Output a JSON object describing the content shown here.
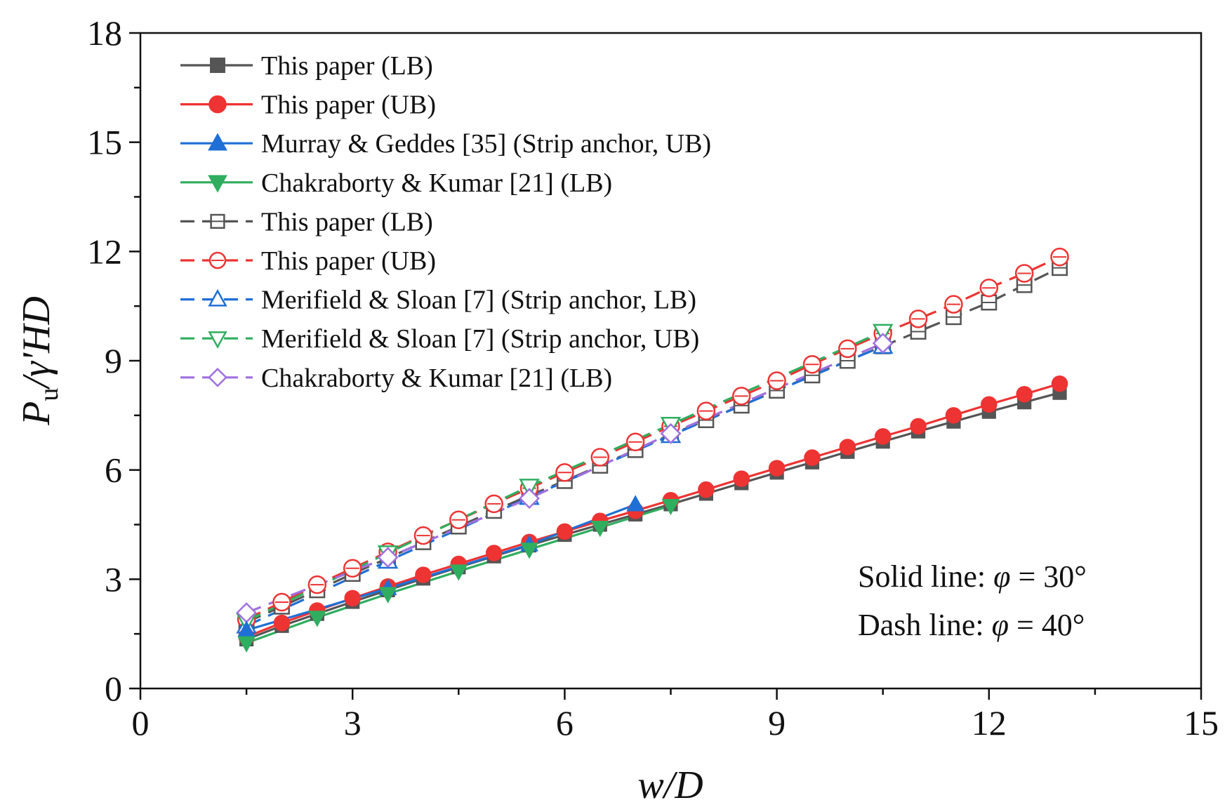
{
  "chart_data": {
    "type": "line",
    "title": "",
    "xlabel": "w/D",
    "ylabel": "Pu/γ'HD",
    "ylabel_parts": {
      "base": "P",
      "sub": "u",
      "rest": "/γ'HD"
    },
    "xlim": [
      0,
      15
    ],
    "ylim": [
      0,
      18
    ],
    "xticks": [
      "0",
      "3",
      "6",
      "9",
      "12",
      "15"
    ],
    "yticks": [
      "0",
      "3",
      "6",
      "9",
      "12",
      "15",
      "18"
    ],
    "xtick_values": [
      0,
      3,
      6,
      9,
      12,
      15
    ],
    "ytick_values": [
      0,
      3,
      6,
      9,
      12,
      15,
      18
    ],
    "legend_position": "top-left",
    "annotations": {
      "solid_prefix": "Solid line: ",
      "solid_phi": "φ",
      "solid_value": " = 30°",
      "dash_prefix": "Dash line: ",
      "dash_phi": "φ",
      "dash_value": " = 40°"
    },
    "series": [
      {
        "name": "This paper (LB)",
        "color": "#555555",
        "line": "solid",
        "marker": "square",
        "filled": true,
        "x": [
          1.5,
          2,
          2.5,
          3,
          3.5,
          4,
          4.5,
          5,
          5.5,
          6,
          6.5,
          7,
          7.5,
          8,
          8.5,
          9,
          9.5,
          10,
          10.5,
          11,
          11.5,
          12,
          12.5,
          13
        ],
        "y": [
          1.35,
          1.72,
          2.05,
          2.38,
          2.7,
          3.02,
          3.33,
          3.63,
          3.93,
          4.22,
          4.5,
          4.78,
          5.06,
          5.35,
          5.64,
          5.93,
          6.21,
          6.5,
          6.78,
          7.06,
          7.33,
          7.6,
          7.86,
          8.12
        ]
      },
      {
        "name": "This paper (UB)",
        "color": "#ee3333",
        "line": "solid",
        "marker": "circle",
        "filled": true,
        "x": [
          1.5,
          2,
          2.5,
          3,
          3.5,
          4,
          4.5,
          5,
          5.5,
          6,
          6.5,
          7,
          7.5,
          8,
          8.5,
          9,
          9.5,
          10,
          10.5,
          11,
          11.5,
          12,
          12.5,
          13
        ],
        "y": [
          1.42,
          1.8,
          2.14,
          2.48,
          2.8,
          3.12,
          3.42,
          3.72,
          4.02,
          4.31,
          4.6,
          4.88,
          5.17,
          5.46,
          5.76,
          6.05,
          6.34,
          6.63,
          6.92,
          7.2,
          7.5,
          7.8,
          8.08,
          8.37
        ]
      },
      {
        "name": "Murray & Geddes [35] (Strip anchor, UB)",
        "color": "#1f6fd6",
        "line": "solid",
        "marker": "triangle-up",
        "filled": true,
        "x": [
          1.5,
          3.5,
          5.5,
          7
        ],
        "y": [
          1.6,
          2.75,
          3.95,
          5.05
        ]
      },
      {
        "name": "Chakraborty & Kumar [21] (LB)",
        "color": "#2fae5f",
        "line": "solid",
        "marker": "triangle-down",
        "filled": true,
        "x": [
          1.5,
          2.5,
          3.5,
          4.5,
          5.5,
          6.5,
          7.5
        ],
        "y": [
          1.25,
          1.95,
          2.6,
          3.22,
          3.82,
          4.42,
          5.02
        ]
      },
      {
        "name": "This paper (LB)",
        "color": "#555555",
        "line": "dash",
        "marker": "square",
        "filled": false,
        "x": [
          1.5,
          2,
          2.5,
          3,
          3.5,
          4,
          4.5,
          5,
          5.5,
          6,
          6.5,
          7,
          7.5,
          8,
          8.5,
          9,
          9.5,
          10,
          10.5,
          11,
          11.5,
          12,
          12.5,
          13
        ],
        "y": [
          1.82,
          2.25,
          2.7,
          3.15,
          3.58,
          4.02,
          4.45,
          4.88,
          5.3,
          5.7,
          6.12,
          6.55,
          6.97,
          7.37,
          7.77,
          8.18,
          8.6,
          9.0,
          9.4,
          9.8,
          10.2,
          10.6,
          11.08,
          11.55
        ]
      },
      {
        "name": "This paper (UB)",
        "color": "#ee3333",
        "line": "dash",
        "marker": "circle",
        "filled": false,
        "x": [
          1.5,
          2,
          2.5,
          3,
          3.5,
          4,
          4.5,
          5,
          5.5,
          6,
          6.5,
          7,
          7.5,
          8,
          8.5,
          9,
          9.5,
          10,
          10.5,
          11,
          11.5,
          12,
          12.5,
          13
        ],
        "y": [
          1.9,
          2.37,
          2.85,
          3.3,
          3.75,
          4.2,
          4.63,
          5.07,
          5.5,
          5.93,
          6.35,
          6.77,
          7.2,
          7.62,
          8.03,
          8.45,
          8.9,
          9.33,
          9.75,
          10.15,
          10.55,
          11.0,
          11.4,
          11.85
        ]
      },
      {
        "name": "Merifield & Sloan [7] (Strip anchor, LB)",
        "color": "#1f6fd6",
        "line": "dash",
        "marker": "triangle-up",
        "filled": false,
        "x": [
          1.5,
          3.5,
          5.5,
          7.5,
          10.5
        ],
        "y": [
          1.72,
          3.5,
          5.25,
          6.95,
          9.4
        ]
      },
      {
        "name": "Merifield & Sloan [7] (Strip anchor, UB)",
        "color": "#2fae5f",
        "line": "dash",
        "marker": "triangle-down",
        "filled": false,
        "x": [
          1.5,
          3.5,
          5.5,
          7.5,
          10.5
        ],
        "y": [
          1.85,
          3.72,
          5.55,
          7.25,
          9.8
        ]
      },
      {
        "name": "Chakraborty & Kumar [21] (LB)",
        "color": "#a070e0",
        "line": "dash",
        "marker": "diamond",
        "filled": false,
        "x": [
          1.5,
          3.5,
          5.5,
          7.5,
          10.5
        ],
        "y": [
          2.08,
          3.6,
          5.22,
          7.0,
          9.48
        ]
      }
    ]
  }
}
